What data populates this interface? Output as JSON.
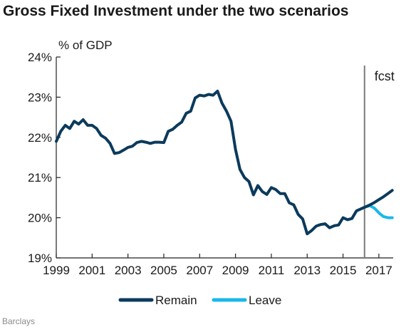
{
  "title": "Gross Fixed Investment under the two scenarios",
  "source": "Barclays",
  "chart_data": {
    "type": "line",
    "title": "Gross Fixed Investment under the two scenarios",
    "ylabel": "% of GDP",
    "xlabel": "",
    "xlim": [
      1999,
      2017.8
    ],
    "ylim": [
      19,
      24
    ],
    "y_ticks": [
      19,
      20,
      21,
      22,
      23,
      24
    ],
    "y_tick_labels": [
      "19%",
      "20%",
      "21%",
      "22%",
      "23%",
      "24%"
    ],
    "x_ticks": [
      1999,
      2001,
      2003,
      2005,
      2007,
      2009,
      2011,
      2013,
      2015,
      2017
    ],
    "x_tick_labels": [
      "1999",
      "2001",
      "2003",
      "2005",
      "2007",
      "2009",
      "2011",
      "2013",
      "2015",
      "2017"
    ],
    "grid": false,
    "legend_position": "bottom",
    "annotation": {
      "text": "fcst",
      "x": 2016.2
    },
    "colors": {
      "Remain": "#0b3a5c",
      "Leave": "#19b8e8",
      "fcst_line": "#7a7a7a"
    },
    "series": [
      {
        "name": "Remain",
        "x": [
          1999.0,
          1999.25,
          1999.5,
          1999.75,
          2000.0,
          2000.25,
          2000.5,
          2000.75,
          2001.0,
          2001.25,
          2001.5,
          2001.75,
          2002.0,
          2002.25,
          2002.5,
          2002.75,
          2003.0,
          2003.25,
          2003.5,
          2003.75,
          2004.0,
          2004.25,
          2004.5,
          2004.75,
          2005.0,
          2005.25,
          2005.5,
          2005.75,
          2006.0,
          2006.25,
          2006.5,
          2006.75,
          2007.0,
          2007.25,
          2007.5,
          2007.75,
          2008.0,
          2008.25,
          2008.5,
          2008.75,
          2009.0,
          2009.25,
          2009.5,
          2009.75,
          2010.0,
          2010.25,
          2010.5,
          2010.75,
          2011.0,
          2011.25,
          2011.5,
          2011.75,
          2012.0,
          2012.25,
          2012.5,
          2012.75,
          2013.0,
          2013.25,
          2013.5,
          2013.75,
          2014.0,
          2014.25,
          2014.5,
          2014.75,
          2015.0,
          2015.25,
          2015.5,
          2015.75,
          2016.0,
          2016.25,
          2016.5,
          2016.75,
          2017.0,
          2017.25,
          2017.5,
          2017.75
        ],
        "values": [
          21.9,
          22.15,
          22.3,
          22.22,
          22.4,
          22.33,
          22.44,
          22.3,
          22.3,
          22.22,
          22.05,
          21.98,
          21.85,
          21.6,
          21.62,
          21.68,
          21.75,
          21.78,
          21.87,
          21.9,
          21.88,
          21.85,
          21.88,
          21.88,
          21.87,
          22.15,
          22.2,
          22.3,
          22.38,
          22.6,
          22.65,
          22.98,
          23.05,
          23.03,
          23.07,
          23.05,
          23.15,
          22.85,
          22.65,
          22.4,
          21.7,
          21.2,
          21.0,
          20.9,
          20.57,
          20.8,
          20.65,
          20.58,
          20.75,
          20.7,
          20.6,
          20.6,
          20.37,
          20.32,
          20.08,
          19.97,
          19.6,
          19.68,
          19.79,
          19.83,
          19.85,
          19.75,
          19.8,
          19.82,
          20.0,
          19.95,
          19.98,
          20.17,
          20.22,
          20.27,
          20.32,
          20.38,
          20.45,
          20.52,
          20.6,
          20.68
        ]
      },
      {
        "name": "Leave",
        "x": [
          2016.0,
          2016.25,
          2016.5,
          2016.75,
          2017.0,
          2017.25,
          2017.5,
          2017.75
        ],
        "values": [
          20.22,
          20.27,
          20.3,
          20.24,
          20.12,
          20.03,
          20.0,
          20.0
        ]
      }
    ]
  }
}
